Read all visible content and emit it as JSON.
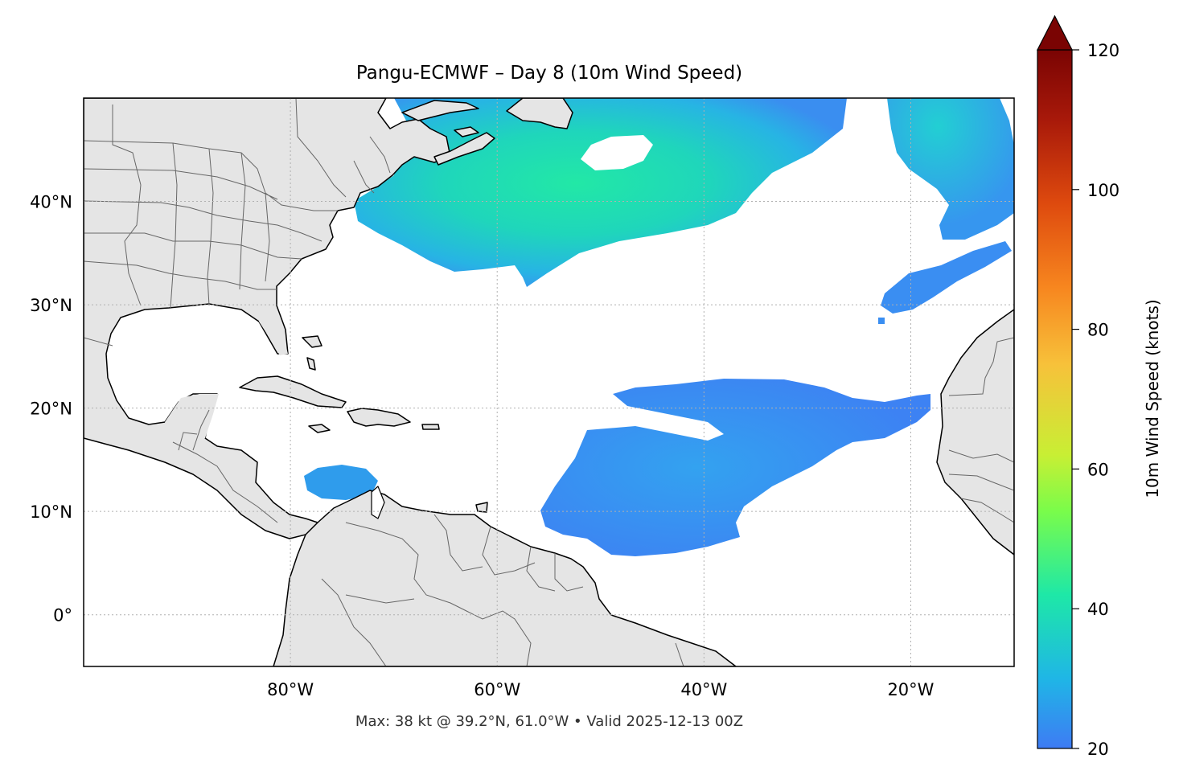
{
  "title": "Pangu-ECMWF – Day 8 (10m Wind Speed)",
  "subtitle": "Max: 38 kt @ 39.2°N, 61.0°W • Valid 2025-12-13 00Z",
  "map": {
    "lon_range": [
      -100,
      -10
    ],
    "lat_range": [
      -5,
      50
    ],
    "lon_ticks": [
      {
        "value": -80,
        "label": "80°W"
      },
      {
        "value": -60,
        "label": "60°W"
      },
      {
        "value": -40,
        "label": "40°W"
      },
      {
        "value": -20,
        "label": "20°W"
      }
    ],
    "lat_ticks": [
      {
        "value": 40,
        "label": "40°N"
      },
      {
        "value": 30,
        "label": "30°N"
      },
      {
        "value": 20,
        "label": "20°N"
      },
      {
        "value": 10,
        "label": "10°N"
      },
      {
        "value": 0,
        "label": "0°"
      }
    ],
    "gridlines": true,
    "land_color": "#e5e5e5",
    "ocean_color": "#ffffff"
  },
  "colorbar": {
    "label": "10m Wind Speed (knots)",
    "range": [
      20,
      120
    ],
    "ticks": [
      {
        "value": 20,
        "label": "20"
      },
      {
        "value": 40,
        "label": "40"
      },
      {
        "value": 60,
        "label": "60"
      },
      {
        "value": 80,
        "label": "80"
      },
      {
        "value": 100,
        "label": "100"
      },
      {
        "value": 120,
        "label": "120"
      }
    ],
    "extend": "max",
    "colors": [
      "#3e7bf4",
      "#1fb6e6",
      "#1ee8a7",
      "#7afc4a",
      "#c8ef34",
      "#f7c13a",
      "#f7861f",
      "#de4a0e",
      "#a8190a",
      "#7a0403"
    ]
  },
  "wind_regions": [
    {
      "name": "north-atlantic-jet",
      "peak_kt": 38
    },
    {
      "name": "tropical-trades",
      "peak_kt": 26
    },
    {
      "name": "caribbean-jet",
      "peak_kt": 27
    },
    {
      "name": "northeast-atlantic",
      "peak_kt": 30
    },
    {
      "name": "azores-streak",
      "peak_kt": 24
    }
  ]
}
